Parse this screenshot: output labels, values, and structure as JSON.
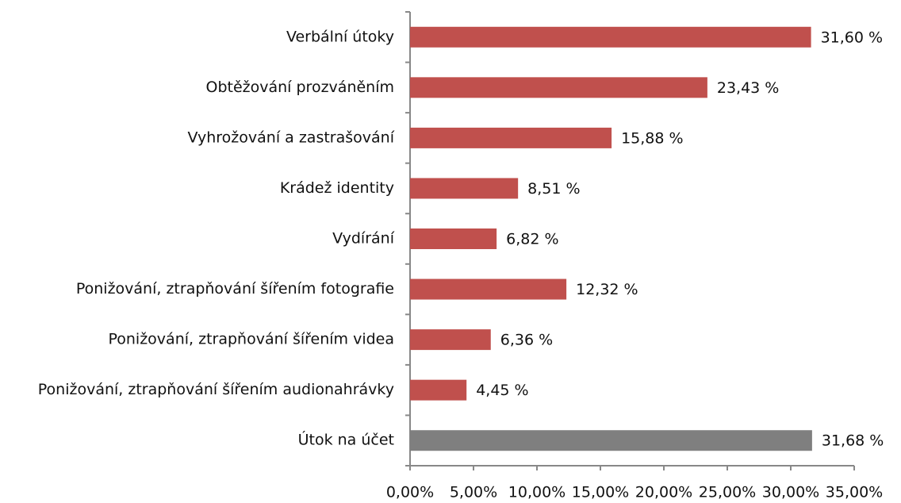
{
  "chart_data": {
    "type": "bar",
    "orientation": "horizontal",
    "categories": [
      "Verbální útoky",
      "Obtěžování prozváněním",
      "Vyhrožování a zastrašování",
      "Krádež identity",
      "Vydírání",
      "Ponižování, ztrapňování šířením fotografie",
      "Ponižování, ztrapňování šířením videa",
      "Ponižování, ztrapňování šířením audionahrávky",
      "Útok na účet"
    ],
    "values": [
      31.6,
      23.43,
      15.88,
      8.51,
      6.82,
      12.32,
      6.36,
      4.45,
      31.68
    ],
    "value_labels": [
      "31,60 %",
      "23,43 %",
      "15,88 %",
      "8,51 %",
      "6,82 %",
      "12,32 %",
      "6,36 %",
      "4,45 %",
      "31,68 %"
    ],
    "colors": [
      "#c0504d",
      "#c0504d",
      "#c0504d",
      "#c0504d",
      "#c0504d",
      "#c0504d",
      "#c0504d",
      "#c0504d",
      "#7f7f7f"
    ],
    "xlim": [
      0,
      35
    ],
    "xticks": [
      {
        "value": 0,
        "label": "0,00%"
      },
      {
        "value": 5,
        "label": "5,00%"
      },
      {
        "value": 10,
        "label": "10,00%"
      },
      {
        "value": 15,
        "label": "15,00%"
      },
      {
        "value": 20,
        "label": "20,00%"
      },
      {
        "value": 25,
        "label": "25,00%"
      },
      {
        "value": 30,
        "label": "30,00%"
      },
      {
        "value": 35,
        "label": "35,00%"
      }
    ]
  }
}
